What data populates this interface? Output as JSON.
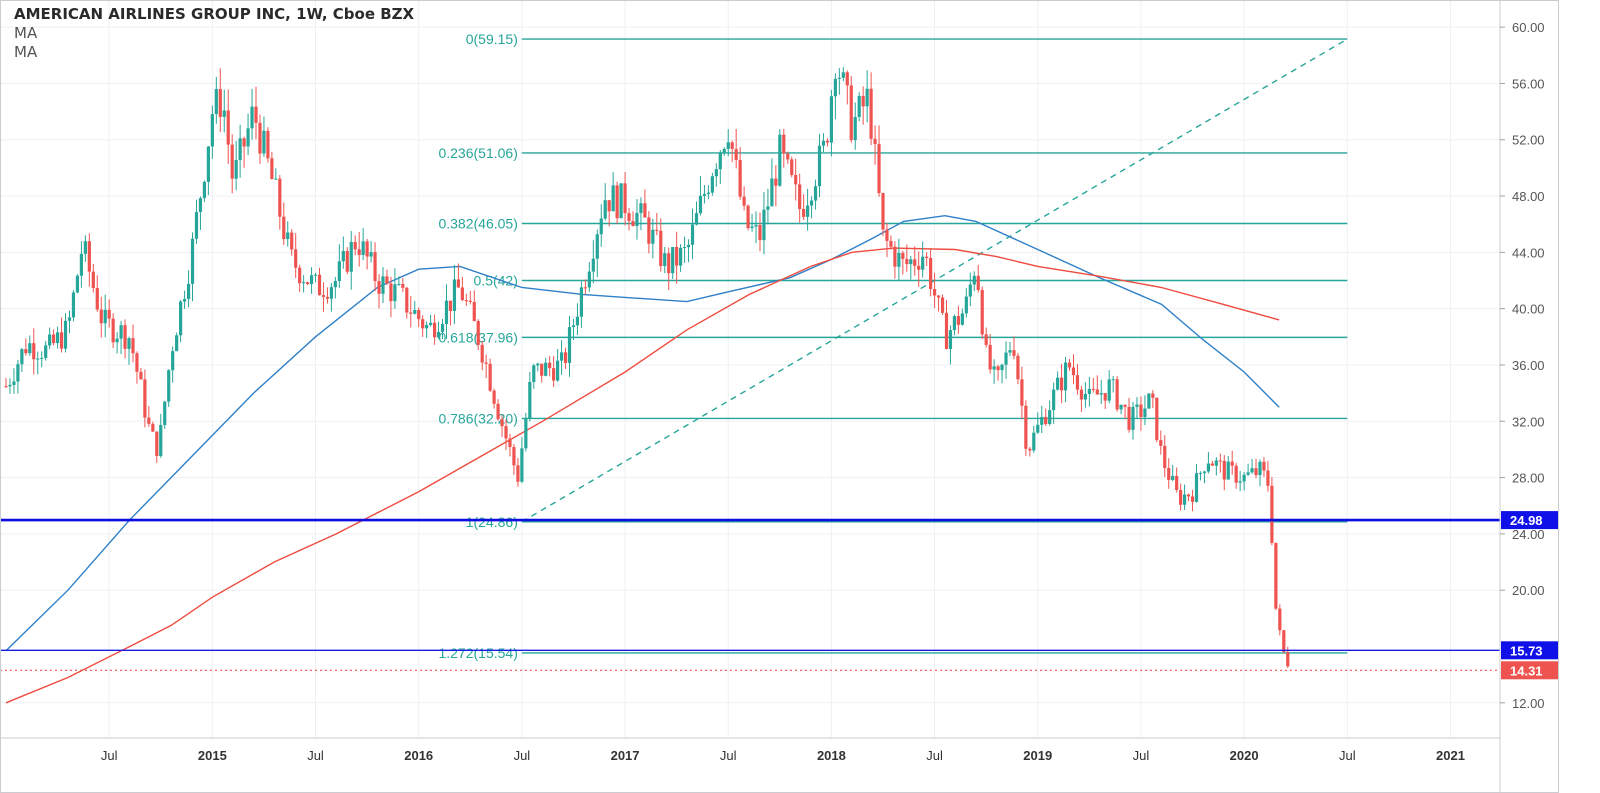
{
  "header": {
    "title": "AMERICAN AIRLINES GROUP INC, 1W, Cboe BZX",
    "indicators": [
      "MA",
      "MA"
    ]
  },
  "chart_data": {
    "type": "candlestick",
    "title": "AMERICAN AIRLINES GROUP INC, 1W, Cboe BZX",
    "xlabel": "",
    "ylabel": "",
    "ylim": [
      9.5,
      61.5
    ],
    "y_ticks": [
      12,
      20,
      24,
      28,
      32,
      36,
      40,
      44,
      48,
      52,
      56,
      60
    ],
    "y_tick_labels": [
      "12.00",
      "20.00",
      "24.00",
      "28.00",
      "32.00",
      "36.00",
      "40.00",
      "44.00",
      "48.00",
      "52.00",
      "56.00",
      "60.00"
    ],
    "x_range": [
      2014.0,
      2021.24
    ],
    "x_ticks": [
      2014.5,
      2015.0,
      2015.5,
      2016.0,
      2016.5,
      2017.0,
      2017.5,
      2018.0,
      2018.5,
      2019.0,
      2019.5,
      2020.0,
      2020.5,
      2021.0
    ],
    "x_tick_labels": [
      "Jul",
      "2015",
      "Jul",
      "2016",
      "Jul",
      "2017",
      "Jul",
      "2018",
      "Jul",
      "2019",
      "Jul",
      "2020",
      "Jul",
      "2021"
    ],
    "grid": true,
    "colors": {
      "up": "#26a69a",
      "down": "#ef5350",
      "fib": "#26a69a",
      "ma_fast": "#2f80c8",
      "ma_slow": "#ef4b3f",
      "support": "#1414e6",
      "axis_text": "#555555"
    },
    "price_key_points": [
      [
        2014.0,
        34.5
      ],
      [
        2014.1,
        37.5
      ],
      [
        2014.2,
        37.0
      ],
      [
        2014.3,
        38.5
      ],
      [
        2014.37,
        44.5
      ],
      [
        2014.47,
        39.0
      ],
      [
        2014.6,
        38.0
      ],
      [
        2014.7,
        31.0
      ],
      [
        2014.74,
        30.0
      ],
      [
        2014.8,
        37.0
      ],
      [
        2014.9,
        44.0
      ],
      [
        2015.0,
        54.0
      ],
      [
        2015.05,
        55.0
      ],
      [
        2015.1,
        49.0
      ],
      [
        2015.2,
        54.0
      ],
      [
        2015.3,
        48.5
      ],
      [
        2015.38,
        43.5
      ],
      [
        2015.5,
        41.5
      ],
      [
        2015.6,
        42.0
      ],
      [
        2015.7,
        45.0
      ],
      [
        2015.8,
        42.0
      ],
      [
        2015.9,
        41.0
      ],
      [
        2016.05,
        38.5
      ],
      [
        2016.2,
        41.5
      ],
      [
        2016.3,
        37.5
      ],
      [
        2016.4,
        32.0
      ],
      [
        2016.48,
        28.0
      ],
      [
        2016.55,
        35.5
      ],
      [
        2016.7,
        36.0
      ],
      [
        2016.8,
        42.0
      ],
      [
        2016.9,
        48.0
      ],
      [
        2017.0,
        47.5
      ],
      [
        2017.1,
        46.0
      ],
      [
        2017.2,
        43.0
      ],
      [
        2017.3,
        44.0
      ],
      [
        2017.42,
        50.0
      ],
      [
        2017.5,
        53.0
      ],
      [
        2017.58,
        46.0
      ],
      [
        2017.65,
        45.0
      ],
      [
        2017.75,
        51.0
      ],
      [
        2017.85,
        47.0
      ],
      [
        2017.97,
        51.5
      ],
      [
        2018.02,
        58.0
      ],
      [
        2018.1,
        53.0
      ],
      [
        2018.18,
        55.0
      ],
      [
        2018.25,
        45.0
      ],
      [
        2018.35,
        43.0
      ],
      [
        2018.45,
        44.0
      ],
      [
        2018.55,
        38.0
      ],
      [
        2018.65,
        40.0
      ],
      [
        2018.7,
        43.5
      ],
      [
        2018.75,
        36.5
      ],
      [
        2018.8,
        34.5
      ],
      [
        2018.88,
        38.0
      ],
      [
        2018.95,
        30.0
      ],
      [
        2019.05,
        33.0
      ],
      [
        2019.15,
        36.0
      ],
      [
        2019.25,
        33.5
      ],
      [
        2019.35,
        34.5
      ],
      [
        2019.45,
        32.0
      ],
      [
        2019.55,
        33.5
      ],
      [
        2019.6,
        29.5
      ],
      [
        2019.68,
        26.5
      ],
      [
        2019.75,
        27.0
      ],
      [
        2019.82,
        29.5
      ],
      [
        2019.9,
        28.5
      ],
      [
        2020.0,
        28.0
      ],
      [
        2020.08,
        28.5
      ],
      [
        2020.12,
        27.5
      ],
      [
        2020.15,
        19.0
      ],
      [
        2020.2,
        15.0
      ],
      [
        2020.22,
        14.3
      ]
    ],
    "moving_averages": [
      {
        "name": "MA",
        "color": "#2f80c8",
        "points": [
          [
            2014.0,
            15.7
          ],
          [
            2014.3,
            20.0
          ],
          [
            2014.6,
            25.0
          ],
          [
            2014.9,
            29.5
          ],
          [
            2015.2,
            34.0
          ],
          [
            2015.5,
            38.0
          ],
          [
            2015.8,
            41.5
          ],
          [
            2016.0,
            42.8
          ],
          [
            2016.2,
            43.0
          ],
          [
            2016.5,
            41.5
          ],
          [
            2016.8,
            41.0
          ],
          [
            2017.0,
            40.8
          ],
          [
            2017.3,
            40.5
          ],
          [
            2017.5,
            41.2
          ],
          [
            2017.8,
            42.2
          ],
          [
            2018.0,
            43.5
          ],
          [
            2018.2,
            45.0
          ],
          [
            2018.35,
            46.2
          ],
          [
            2018.55,
            46.6
          ],
          [
            2018.7,
            46.2
          ],
          [
            2019.0,
            44.2
          ],
          [
            2019.3,
            42.2
          ],
          [
            2019.6,
            40.3
          ],
          [
            2019.8,
            37.8
          ],
          [
            2020.0,
            35.5
          ],
          [
            2020.17,
            33.0
          ]
        ]
      },
      {
        "name": "MA",
        "color": "#ef4b3f",
        "points": [
          [
            2014.0,
            12.0
          ],
          [
            2014.3,
            13.8
          ],
          [
            2014.6,
            16.0
          ],
          [
            2014.8,
            17.5
          ],
          [
            2015.0,
            19.5
          ],
          [
            2015.3,
            22.0
          ],
          [
            2015.6,
            24.0
          ],
          [
            2016.0,
            27.0
          ],
          [
            2016.3,
            29.5
          ],
          [
            2016.6,
            32.0
          ],
          [
            2017.0,
            35.5
          ],
          [
            2017.3,
            38.5
          ],
          [
            2017.6,
            41.0
          ],
          [
            2017.9,
            43.0
          ],
          [
            2018.1,
            44.0
          ],
          [
            2018.3,
            44.3
          ],
          [
            2018.6,
            44.2
          ],
          [
            2018.8,
            43.7
          ],
          [
            2019.0,
            43.0
          ],
          [
            2019.3,
            42.3
          ],
          [
            2019.6,
            41.5
          ],
          [
            2019.9,
            40.3
          ],
          [
            2020.17,
            39.2
          ]
        ]
      }
    ],
    "fibonacci": {
      "x_start": 2016.5,
      "x_end": 2020.5,
      "levels": [
        {
          "label": "0(59.15)",
          "value": 59.15
        },
        {
          "label": "0.236(51.06)",
          "value": 51.06
        },
        {
          "label": "0.382(46.05)",
          "value": 46.05
        },
        {
          "label": "0.5(42)",
          "value": 42.0
        },
        {
          "label": "0.618(37.96)",
          "value": 37.96
        },
        {
          "label": "0.786(32.20)",
          "value": 32.2
        },
        {
          "label": "1(24.86)",
          "value": 24.86
        },
        {
          "label": "1.272(15.54)",
          "value": 15.54
        }
      ],
      "trend_line": [
        [
          2016.5,
          24.86
        ],
        [
          2020.5,
          59.15
        ]
      ]
    },
    "price_lines": [
      {
        "label": "24.98",
        "value": 24.98,
        "color": "#0d0de0",
        "style": "solid-thick"
      },
      {
        "label": "15.73",
        "value": 15.73,
        "color": "#1a1ae6",
        "style": "solid"
      },
      {
        "label": "14.31",
        "value": 14.31,
        "color": "#ef5350",
        "style": "dotted"
      }
    ]
  }
}
